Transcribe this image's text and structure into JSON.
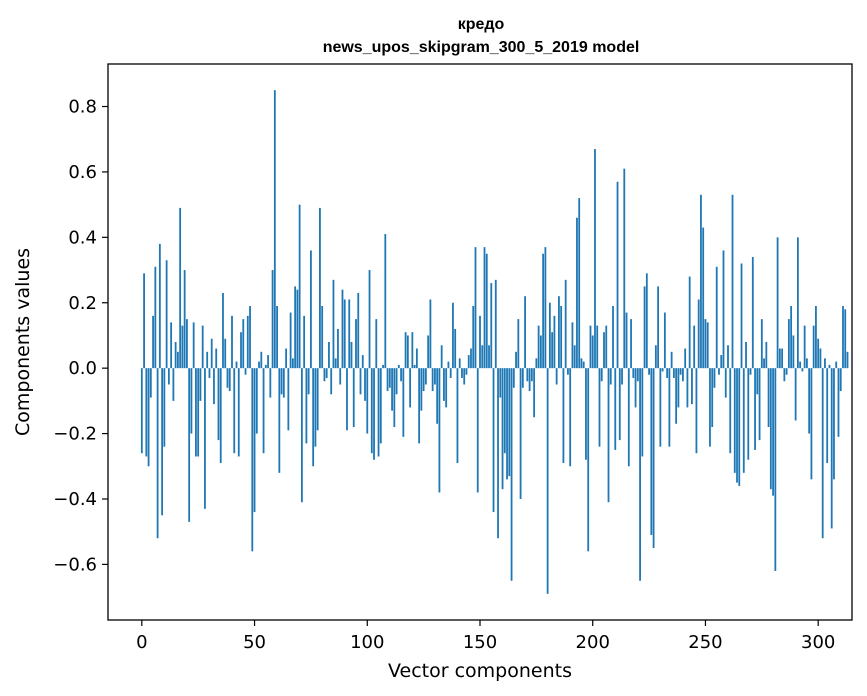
{
  "chart_data": {
    "type": "bar",
    "title": [
      "кредо",
      "news_upos_skipgram_300_5_2019 model"
    ],
    "xlabel": "Vector components",
    "ylabel": "Components values",
    "xlim": [
      -15,
      315
    ],
    "ylim": [
      -0.77,
      0.93
    ],
    "xticks": [
      0,
      50,
      100,
      150,
      200,
      250,
      300
    ],
    "xtick_labels": [
      "0",
      "50",
      "100",
      "150",
      "200",
      "250",
      "300"
    ],
    "yticks": [
      -0.6,
      -0.4,
      -0.2,
      0.0,
      0.2,
      0.4,
      0.6,
      0.8
    ],
    "ytick_labels": [
      "−0.6",
      "−0.4",
      "−0.2",
      "0.0",
      "0.2",
      "0.4",
      "0.6",
      "0.8"
    ],
    "grid": false,
    "bar_color": "#1f77b4",
    "x_start": 0,
    "values": [
      -0.26,
      0.29,
      -0.27,
      -0.3,
      -0.09,
      0.16,
      0.31,
      -0.52,
      0.38,
      -0.45,
      -0.24,
      0.33,
      -0.05,
      0.14,
      -0.1,
      0.08,
      0.05,
      0.49,
      0.13,
      0.3,
      0.15,
      -0.47,
      -0.2,
      0.14,
      -0.27,
      -0.27,
      -0.1,
      0.13,
      -0.43,
      0.05,
      -0.03,
      0.09,
      -0.11,
      0.06,
      -0.22,
      -0.29,
      0.23,
      0.09,
      -0.06,
      -0.07,
      0.16,
      -0.26,
      0.02,
      -0.27,
      0.11,
      0.15,
      -0.02,
      0.16,
      0.19,
      -0.56,
      -0.44,
      -0.2,
      0.02,
      0.05,
      -0.26,
      0.01,
      0.04,
      -0.09,
      0.3,
      0.85,
      0.19,
      -0.32,
      -0.08,
      -0.09,
      0.06,
      -0.19,
      0.17,
      0.03,
      0.25,
      0.24,
      0.5,
      -0.41,
      0.16,
      -0.23,
      -0.08,
      0.36,
      -0.3,
      -0.24,
      -0.19,
      0.49,
      0.19,
      -0.04,
      -0.03,
      0.08,
      -0.08,
      0.27,
      0.03,
      0.12,
      -0.05,
      0.24,
      0.21,
      -0.19,
      0.21,
      0.08,
      -0.18,
      0.15,
      0.23,
      -0.08,
      0.04,
      -0.1,
      -0.2,
      0.3,
      -0.26,
      -0.28,
      0.15,
      -0.27,
      -0.23,
      0.01,
      0.41,
      -0.07,
      -0.06,
      -0.13,
      -0.18,
      -0.08,
      0.01,
      -0.04,
      -0.21,
      0.11,
      0.1,
      -0.12,
      0.11,
      0.01,
      0.06,
      -0.23,
      -0.13,
      -0.07,
      -0.05,
      0.1,
      0.21,
      -0.07,
      -0.05,
      -0.17,
      -0.38,
      0.07,
      -0.1,
      -0.12,
      0.02,
      -0.03,
      0.2,
      0.12,
      -0.29,
      0.03,
      -0.03,
      -0.05,
      -0.02,
      0.04,
      0.06,
      0.19,
      0.37,
      -0.38,
      0.16,
      0.07,
      0.37,
      0.35,
      0.07,
      0.26,
      -0.44,
      0.27,
      -0.52,
      -0.09,
      -0.37,
      -0.26,
      -0.34,
      -0.33,
      -0.65,
      -0.06,
      0.05,
      0.15,
      -0.4,
      -0.06,
      0.22,
      -0.04,
      -0.07,
      -0.04,
      -0.15,
      0.03,
      0.13,
      0.1,
      0.35,
      0.37,
      -0.69,
      0.2,
      0.11,
      0.16,
      -0.05,
      0.22,
      0.19,
      -0.29,
      0.27,
      -0.02,
      -0.3,
      0.14,
      0.07,
      0.46,
      0.52,
      0.03,
      0.02,
      -0.28,
      -0.56,
      0.13,
      0.1,
      0.67,
      0.13,
      -0.24,
      -0.04,
      0.11,
      0.13,
      -0.41,
      -0.05,
      0.19,
      -0.25,
      0.57,
      -0.22,
      -0.05,
      0.61,
      0.17,
      -0.3,
      0.15,
      -0.03,
      -0.12,
      -0.04,
      -0.65,
      -0.27,
      0.25,
      0.29,
      -0.02,
      -0.51,
      -0.55,
      0.07,
      0.25,
      -0.24,
      -0.01,
      0.17,
      -0.03,
      -0.24,
      0.05,
      -0.03,
      -0.17,
      -0.12,
      -0.02,
      -0.04,
      0.06,
      -0.12,
      0.28,
      -0.11,
      0.13,
      -0.26,
      0.21,
      0.53,
      0.43,
      0.15,
      0.14,
      -0.24,
      -0.18,
      -0.06,
      0.31,
      -0.02,
      0.04,
      0.36,
      -0.09,
      0.07,
      -0.26,
      0.53,
      -0.32,
      -0.35,
      -0.36,
      0.32,
      -0.32,
      0.08,
      -0.28,
      -0.02,
      0.34,
      -0.25,
      -0.08,
      -0.22,
      0.15,
      0.03,
      0.08,
      -0.18,
      -0.37,
      -0.39,
      -0.62,
      0.4,
      0.06,
      0.06,
      -0.04,
      -0.02,
      0.15,
      0.19,
      0.1,
      -0.16,
      0.4,
      0.02,
      -0.01,
      0.13,
      0.03,
      -0.2,
      -0.34,
      0.13,
      0.19,
      0.09,
      0.06,
      -0.52,
      0.03,
      -0.29,
      0.01,
      -0.49,
      -0.34,
      0.02,
      -0.21,
      -0.07,
      0.19,
      0.18,
      0.05
    ]
  }
}
